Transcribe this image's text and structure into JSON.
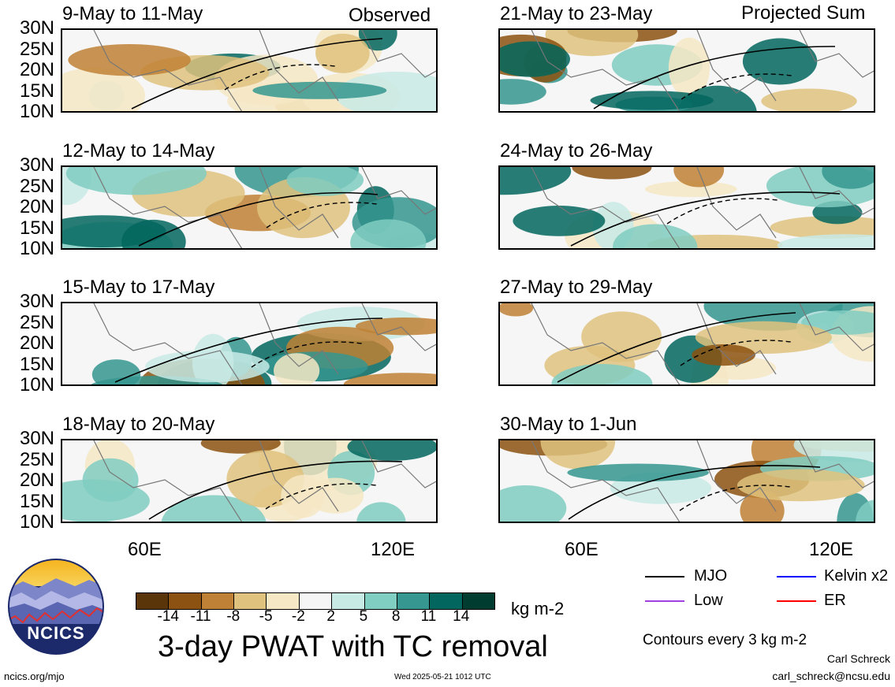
{
  "headers": {
    "observed": "Observed",
    "projected": "Projected Sum"
  },
  "panels_observed": [
    {
      "title": "9-May to 11-May"
    },
    {
      "title": "12-May to 14-May"
    },
    {
      "title": "15-May to 17-May"
    },
    {
      "title": "18-May to 20-May"
    }
  ],
  "panels_projected": [
    {
      "title": "21-May to 23-May"
    },
    {
      "title": "24-May to 26-May"
    },
    {
      "title": "27-May to 29-May"
    },
    {
      "title": "30-May to 1-Jun"
    }
  ],
  "lat_labels": [
    "30N",
    "25N",
    "20N",
    "15N",
    "10N"
  ],
  "lon_labels": [
    "60E",
    "120E"
  ],
  "colorbar": {
    "colors": [
      "#5a3509",
      "#8c5211",
      "#bf8135",
      "#dfc27e",
      "#f6e8c4",
      "#f5f5f5",
      "#c8eae5",
      "#80cdc1",
      "#35978f",
      "#02665e",
      "#003c30"
    ],
    "ticks": [
      "-14",
      "-11",
      "-8",
      "-5",
      "-2",
      "2",
      "5",
      "8",
      "11",
      "14"
    ],
    "units": "kg m-2"
  },
  "legend": {
    "items": [
      {
        "label": "MJO",
        "color": "#000000"
      },
      {
        "label": "Kelvin x2",
        "color": "#0000ff"
      },
      {
        "label": "Low",
        "color": "#a040e0"
      },
      {
        "label": "ER",
        "color": "#ff0000"
      }
    ],
    "contours_note": "Contours every 3 kg m-2"
  },
  "main_title": "3-day PWAT with TC removal",
  "logo_text": "NCICS",
  "footer": {
    "left": "ncics.org/mjo",
    "center": "Wed 2025-05-21 1012 UTC",
    "author": "Carl Schreck",
    "email": "carl_schreck@ncsu.edu"
  }
}
